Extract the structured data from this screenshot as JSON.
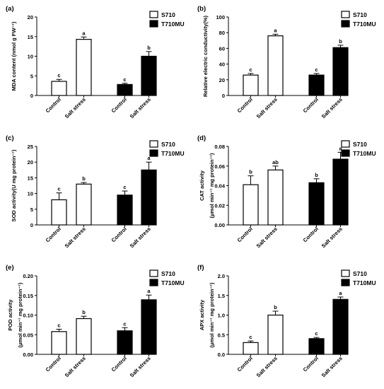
{
  "figure": {
    "legend_labels": [
      "S710",
      "T710MU"
    ],
    "colors": {
      "S710": "#ffffff",
      "T710MU": "#000000",
      "stroke": "#000000"
    }
  },
  "chart_data": [
    {
      "type": "bar",
      "panel_label": "(a)",
      "ylabel_lines": [
        "MDA content (nmol g FW⁻¹)"
      ],
      "categories": [
        "Control",
        "Salt stress",
        "Control",
        "Salt stress"
      ],
      "groups": [
        "S710",
        "S710",
        "T710MU",
        "T710MU"
      ],
      "values": [
        3.6,
        14.3,
        2.8,
        10.0
      ],
      "errors": [
        0.5,
        0.6,
        0.3,
        1.2
      ],
      "letters": [
        "c",
        "a",
        "c",
        "b"
      ],
      "ylim": [
        0,
        20
      ],
      "yticks": [
        "0",
        "5",
        "10",
        "15",
        "20"
      ],
      "legend_position": "top-right"
    },
    {
      "type": "bar",
      "panel_label": "(b)",
      "ylabel_lines": [
        "Relative electric conductivity(%)"
      ],
      "categories": [
        "Control",
        "Salt stress",
        "Control",
        "Salt stress"
      ],
      "groups": [
        "S710",
        "S710",
        "T710MU",
        "T710MU"
      ],
      "values": [
        26,
        76,
        26,
        61
      ],
      "errors": [
        2,
        2,
        2,
        3
      ],
      "letters": [
        "c",
        "a",
        "c",
        "b"
      ],
      "ylim": [
        0,
        100
      ],
      "yticks": [
        "0",
        "20",
        "40",
        "60",
        "80",
        "100"
      ],
      "legend_position": "top-right"
    },
    {
      "type": "bar",
      "panel_label": "(c)",
      "ylabel_lines": [
        "SOD activity(U mg protein⁻¹)"
      ],
      "categories": [
        "Control",
        "Salt stress",
        "Control",
        "Salt stress"
      ],
      "groups": [
        "S710",
        "S710",
        "T710MU",
        "T710MU"
      ],
      "values": [
        8.0,
        13.0,
        9.5,
        17.5
      ],
      "errors": [
        2.2,
        0.5,
        1.3,
        2.5
      ],
      "letters": [
        "c",
        "b",
        "c",
        "a"
      ],
      "ylim": [
        0,
        25
      ],
      "yticks": [
        "0",
        "5",
        "10",
        "15",
        "20",
        "25"
      ],
      "legend_position": "top-right"
    },
    {
      "type": "bar",
      "panel_label": "(d)",
      "ylabel_lines": [
        "CAT activity",
        "(μmol  min⁻¹ mg protein⁻¹)"
      ],
      "categories": [
        "Control",
        "Salt stress",
        "Control",
        "Salt stress"
      ],
      "groups": [
        "S710",
        "S710",
        "T710MU",
        "T710MU"
      ],
      "values": [
        0.041,
        0.056,
        0.043,
        0.067
      ],
      "errors": [
        0.009,
        0.004,
        0.004,
        0.007
      ],
      "letters": [
        "b",
        "ab",
        "b",
        "a"
      ],
      "ylim": [
        0,
        0.08
      ],
      "yticks": [
        "0.00",
        "0.02",
        "0.04",
        "0.06",
        "0.08"
      ],
      "legend_position": "top-right"
    },
    {
      "type": "bar",
      "panel_label": "(e)",
      "ylabel_lines": [
        "POD activity",
        "(μmol  min⁻¹ mg protein⁻¹)"
      ],
      "categories": [
        "Control",
        "Salt stress",
        "Control",
        "Salt stress"
      ],
      "groups": [
        "S710",
        "S710",
        "T710MU",
        "T710MU"
      ],
      "values": [
        0.058,
        0.091,
        0.06,
        0.139
      ],
      "errors": [
        0.006,
        0.006,
        0.008,
        0.012
      ],
      "letters": [
        "c",
        "b",
        "c",
        "a"
      ],
      "ylim": [
        0,
        0.2
      ],
      "yticks": [
        "0.00",
        "0.05",
        "0.10",
        "0.15",
        "0.20"
      ],
      "legend_position": "top-right"
    },
    {
      "type": "bar",
      "panel_label": "(f)",
      "ylabel_lines": [
        "APX activity",
        "(μmol  min⁻¹ mg protein⁻¹)"
      ],
      "categories": [
        "Control",
        "Salt stress",
        "Control",
        "Salt stress"
      ],
      "groups": [
        "S710",
        "S710",
        "T710MU",
        "T710MU"
      ],
      "values": [
        0.3,
        1.0,
        0.4,
        1.4
      ],
      "errors": [
        0.04,
        0.1,
        0.03,
        0.06
      ],
      "letters": [
        "c",
        "b",
        "c",
        "a"
      ],
      "ylim": [
        0,
        2.0
      ],
      "yticks": [
        "0.0",
        "0.5",
        "1.0",
        "1.5",
        "2.0"
      ],
      "legend_position": "top-right"
    }
  ]
}
